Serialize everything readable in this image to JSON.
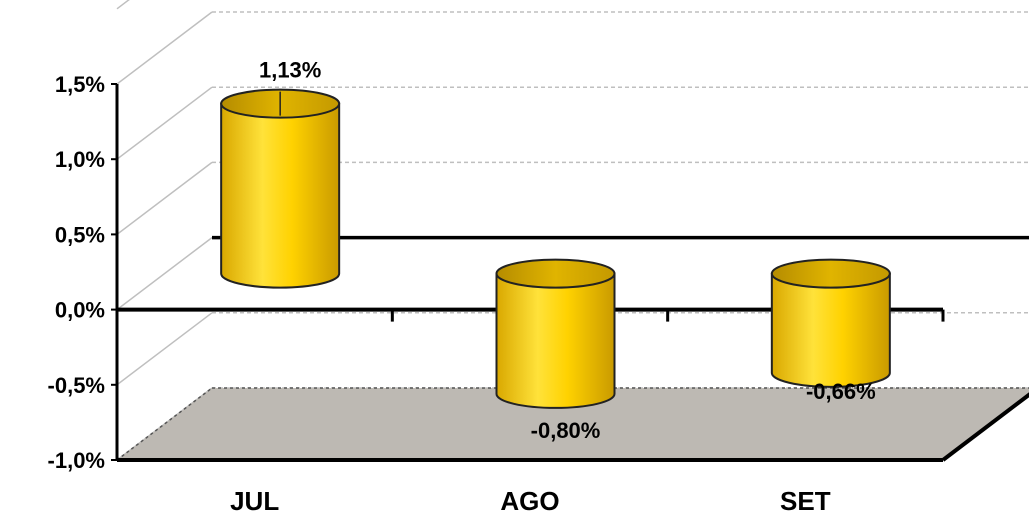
{
  "chart_data": {
    "type": "bar",
    "style": "3d-cylinder",
    "categories": [
      "JUL",
      "AGO",
      "SET"
    ],
    "values": [
      1.13,
      -0.8,
      -0.66
    ],
    "data_labels": [
      "1,13%",
      "-0,80%",
      "-0,66%"
    ],
    "ylim": [
      -1.0,
      1.5
    ],
    "yticks": [
      1.5,
      1.0,
      0.5,
      0.0,
      -0.5,
      -1.0
    ],
    "ytick_labels": [
      "1,5%",
      "1,0%",
      "0,5%",
      "0,0%",
      "-0,5%",
      "-1,0%"
    ],
    "grid": true,
    "legend": "none",
    "colors": {
      "bar": "#FFD200",
      "bar_dark": "#C9A000",
      "bar_light": "#FFE84D",
      "floor": "#BDB9B3",
      "grid": "#BFBFBF"
    }
  }
}
